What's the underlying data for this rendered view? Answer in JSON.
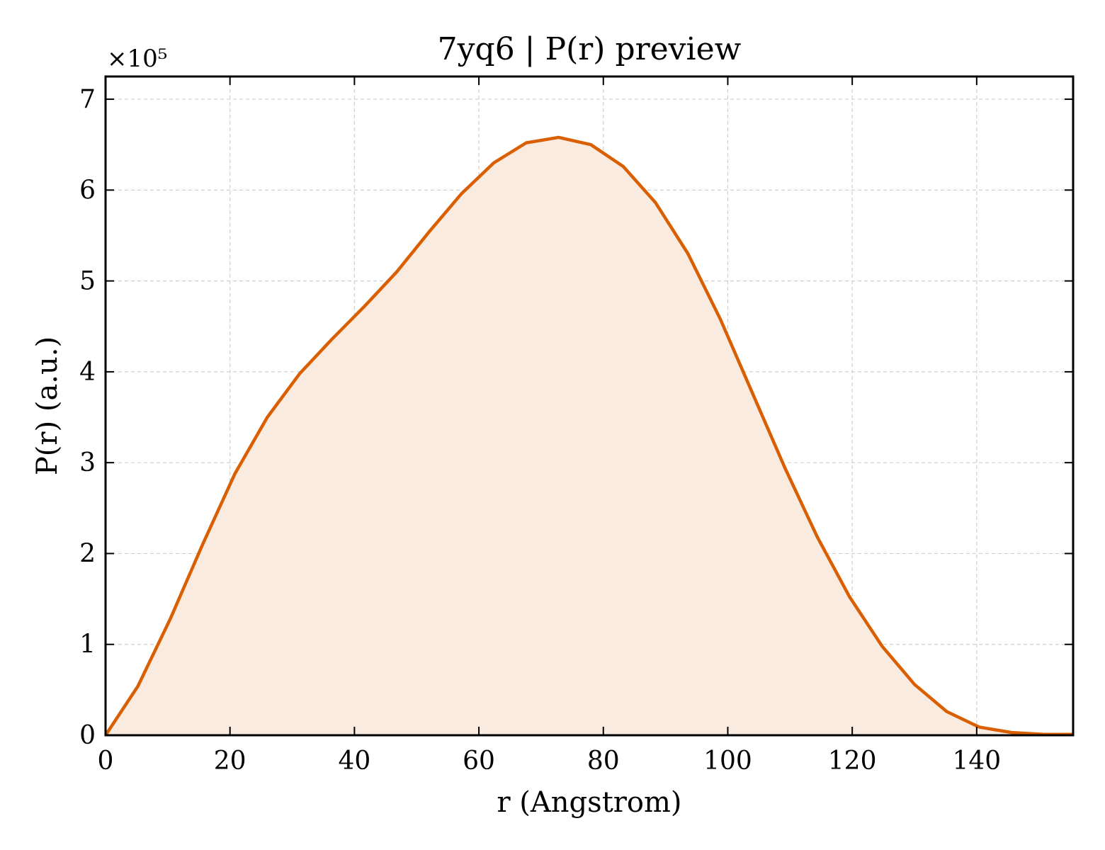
{
  "chart_data": {
    "type": "area",
    "title": "7yq6 | P(r) preview",
    "xlabel": "r (Angstrom)",
    "ylabel": "P(r) (a.u.)",
    "y_multiplier_label": "×10⁵",
    "xlim": [
      0,
      155.5
    ],
    "ylim": [
      0,
      7.25
    ],
    "y_scale_factor": 100000,
    "xticks": [
      0,
      20,
      40,
      60,
      80,
      100,
      120,
      140
    ],
    "yticks": [
      0,
      1,
      2,
      3,
      4,
      5,
      6,
      7
    ],
    "grid": true,
    "line_color": "#d95f02",
    "fill_color": "#f9ebe0",
    "series": [
      {
        "x": [
          0,
          5.2,
          10.4,
          15.6,
          20.8,
          26.0,
          31.2,
          36.4,
          41.6,
          46.8,
          52.0,
          57.2,
          62.4,
          67.6,
          72.8,
          78.0,
          83.2,
          88.4,
          93.6,
          98.8,
          104.0,
          109.2,
          114.4,
          119.6,
          124.8,
          130.0,
          135.2,
          140.4,
          145.6,
          150.8,
          155.5
        ],
        "y": [
          0,
          0.54,
          1.28,
          2.1,
          2.88,
          3.5,
          3.98,
          4.36,
          4.72,
          5.1,
          5.54,
          5.96,
          6.3,
          6.52,
          6.58,
          6.5,
          6.26,
          5.86,
          5.3,
          4.58,
          3.76,
          2.94,
          2.18,
          1.52,
          0.98,
          0.56,
          0.26,
          0.09,
          0.03,
          0.01,
          0.01
        ]
      }
    ]
  }
}
